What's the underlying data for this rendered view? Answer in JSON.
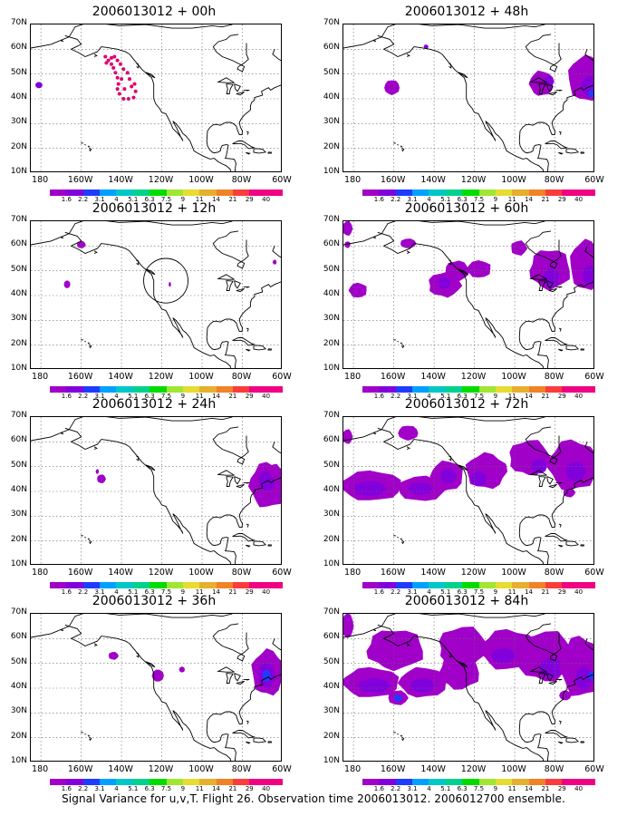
{
  "panels": [
    {
      "title": "2006013012 + 00h",
      "features": "p00"
    },
    {
      "title": "2006013012 + 48h",
      "features": "p48"
    },
    {
      "title": "2006013012 + 12h",
      "features": "p12"
    },
    {
      "title": "2006013012 + 60h",
      "features": "p60"
    },
    {
      "title": "2006013012 + 24h",
      "features": "p24"
    },
    {
      "title": "2006013012 + 72h",
      "features": "p72"
    },
    {
      "title": "2006013012 + 36h",
      "features": "p36"
    },
    {
      "title": "2006013012 + 84h",
      "features": "p84"
    }
  ],
  "lat_labels": [
    "70N",
    "60N",
    "50N",
    "40N",
    "30N",
    "20N",
    "10N"
  ],
  "lon_labels": [
    "180",
    "160W",
    "140W",
    "120W",
    "100W",
    "80W",
    "60W"
  ],
  "colorbar": {
    "labels": [
      "1.6",
      "2.2",
      "3.1",
      "4",
      "5.1",
      "6.3",
      "7.5",
      "9",
      "11",
      "14",
      "21",
      "29",
      "40"
    ],
    "colors": [
      "#a000c8",
      "#8200dc",
      "#1e3cff",
      "#00a0ff",
      "#00c8c8",
      "#00d28c",
      "#00dc00",
      "#a0e632",
      "#e6dc32",
      "#e6af2d",
      "#f08228",
      "#fa3c3c",
      "#f00082"
    ]
  },
  "caption": "Signal Variance for u,v,T. Flight 26. Observation time 2006013012. 2006012700 ensemble."
}
